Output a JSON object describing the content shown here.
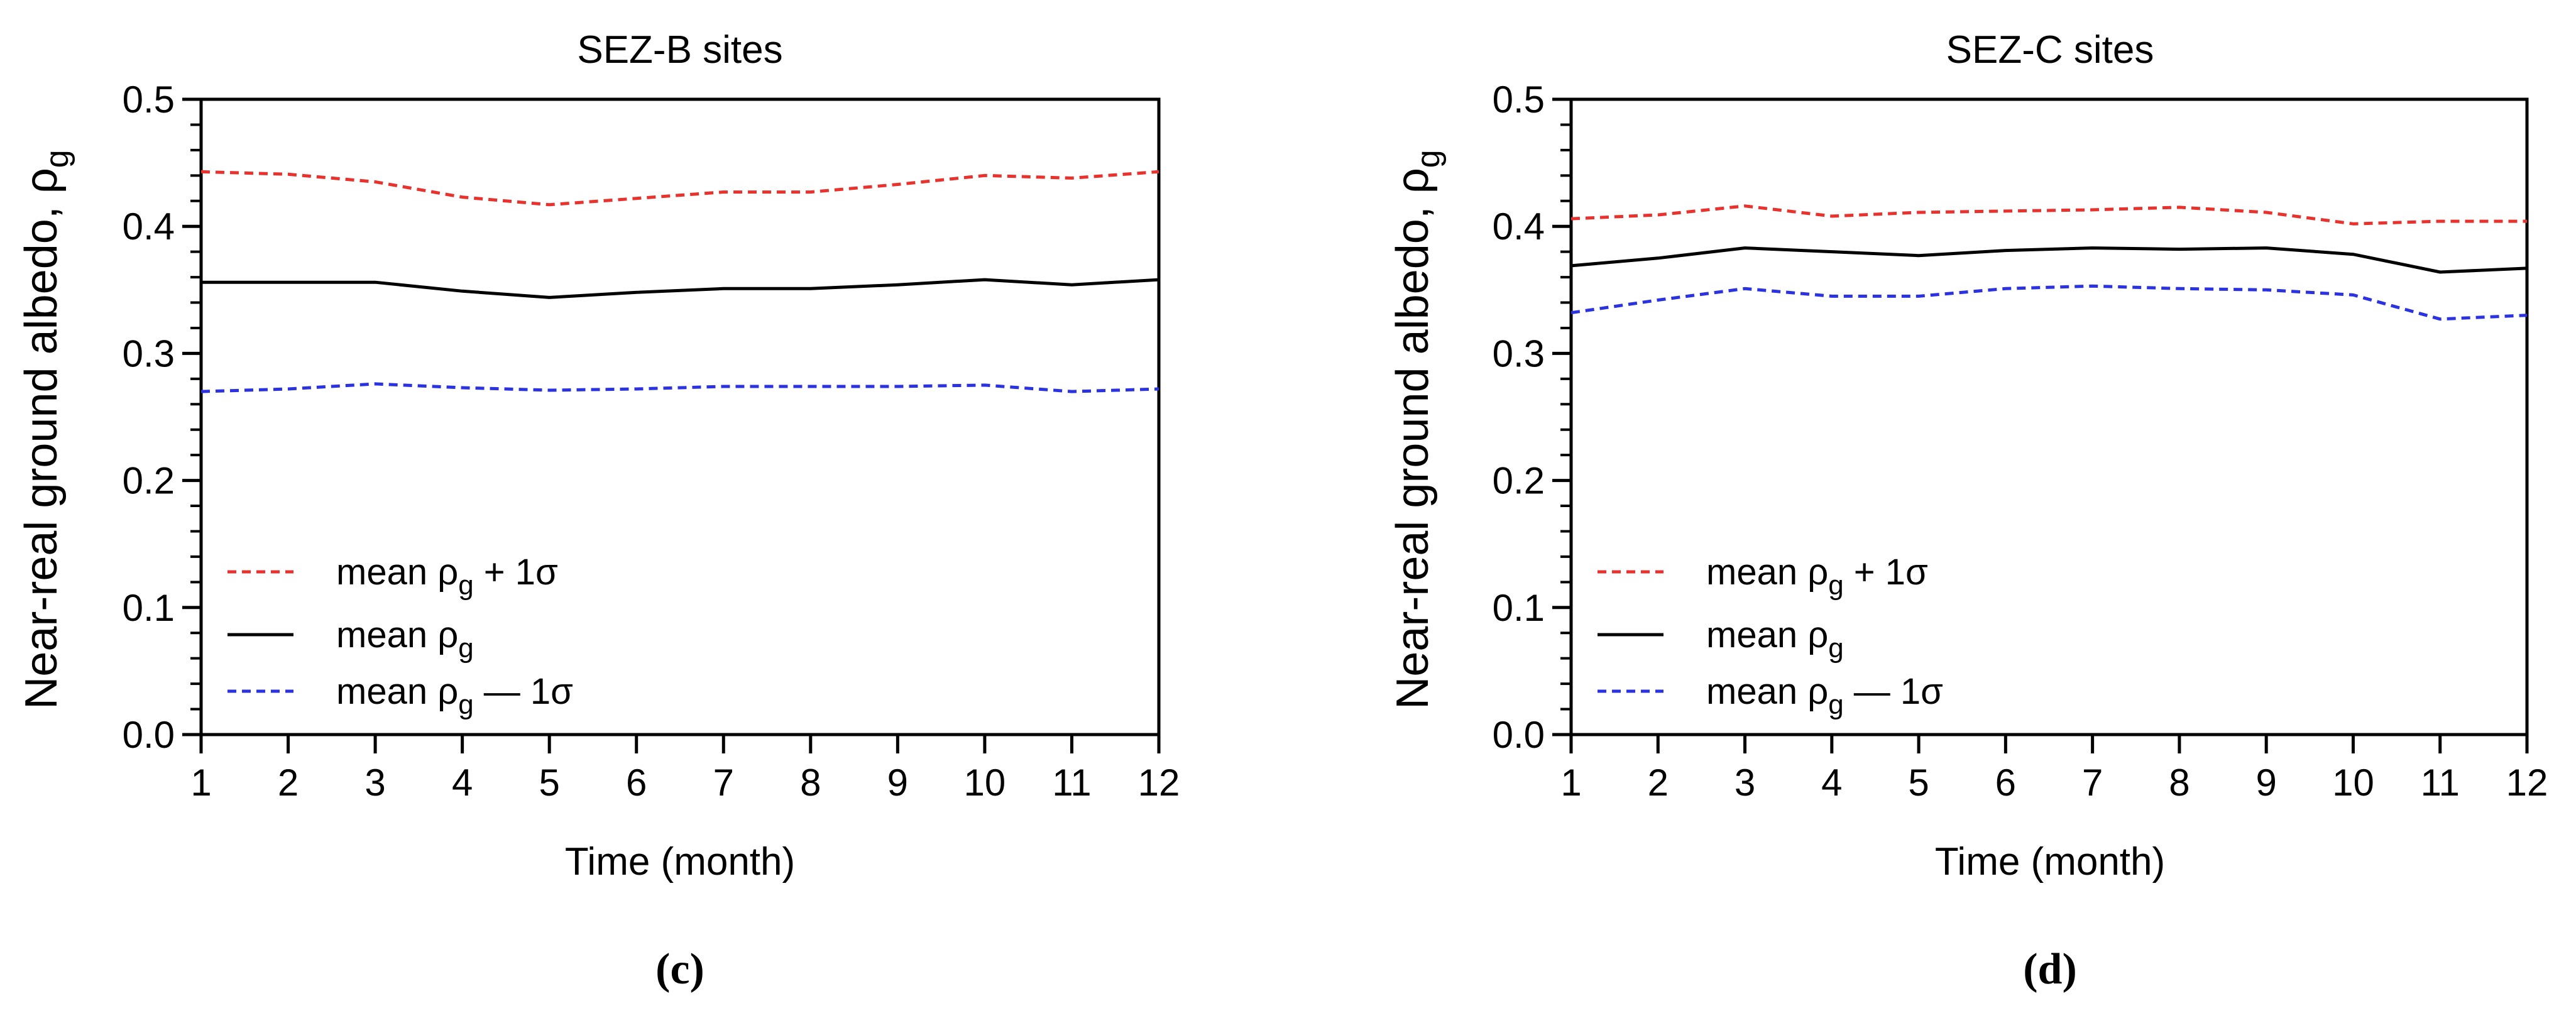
{
  "chart_data": [
    {
      "type": "line",
      "panel_label": "(c)",
      "title": "SEZ-B sites",
      "xlabel": "Time (month)",
      "ylabel": "Near-real ground albedo, ρ",
      "ylabel_sub": "g",
      "xlim": [
        1,
        12
      ],
      "ylim": [
        0,
        0.5
      ],
      "x": [
        1,
        2,
        3,
        4,
        5,
        6,
        7,
        8,
        9,
        10,
        11,
        12
      ],
      "x_ticks": [
        "1",
        "2",
        "3",
        "4",
        "5",
        "6",
        "7",
        "8",
        "9",
        "10",
        "11",
        "12"
      ],
      "y_ticks": [
        "0.0",
        "0.1",
        "0.2",
        "0.3",
        "0.4",
        "0.5"
      ],
      "legend_position": "lower-left",
      "series": [
        {
          "key": "plus",
          "name": "mean ρg + 1σ",
          "legend_pre": "mean ρ",
          "legend_sub": "g",
          "legend_post": " + 1σ",
          "color": "#e8322d",
          "style": "dashed",
          "values": [
            0.443,
            0.441,
            0.435,
            0.423,
            0.417,
            0.422,
            0.427,
            0.427,
            0.433,
            0.44,
            0.438,
            0.443
          ]
        },
        {
          "key": "mean",
          "name": "mean ρg",
          "legend_pre": "mean ρ",
          "legend_sub": "g",
          "legend_post": "",
          "color": "#000000",
          "style": "solid",
          "values": [
            0.356,
            0.356,
            0.356,
            0.349,
            0.344,
            0.348,
            0.351,
            0.351,
            0.354,
            0.358,
            0.354,
            0.358
          ]
        },
        {
          "key": "minus",
          "name": "mean ρg — 1σ",
          "legend_pre": "mean ρ",
          "legend_sub": "g",
          "legend_post": " — 1σ",
          "color": "#2b32e0",
          "style": "dashed",
          "values": [
            0.27,
            0.272,
            0.276,
            0.273,
            0.271,
            0.272,
            0.274,
            0.274,
            0.274,
            0.275,
            0.27,
            0.272
          ]
        }
      ]
    },
    {
      "type": "line",
      "panel_label": "(d)",
      "title": "SEZ-C sites",
      "xlabel": "Time (month)",
      "ylabel": "Near-real ground albedo, ρ",
      "ylabel_sub": "g",
      "xlim": [
        1,
        12
      ],
      "ylim": [
        0,
        0.5
      ],
      "x": [
        1,
        2,
        3,
        4,
        5,
        6,
        7,
        8,
        9,
        10,
        11,
        12
      ],
      "x_ticks": [
        "1",
        "2",
        "3",
        "4",
        "5",
        "6",
        "7",
        "8",
        "9",
        "10",
        "11",
        "12"
      ],
      "y_ticks": [
        "0.0",
        "0.1",
        "0.2",
        "0.3",
        "0.4",
        "0.5"
      ],
      "legend_position": "lower-left",
      "series": [
        {
          "key": "plus",
          "name": "mean ρg + 1σ",
          "legend_pre": "mean ρ",
          "legend_sub": "g",
          "legend_post": " + 1σ",
          "color": "#e8322d",
          "style": "dashed",
          "values": [
            0.406,
            0.409,
            0.416,
            0.408,
            0.411,
            0.412,
            0.413,
            0.415,
            0.411,
            0.402,
            0.404,
            0.404
          ]
        },
        {
          "key": "mean",
          "name": "mean ρg",
          "legend_pre": "mean ρ",
          "legend_sub": "g",
          "legend_post": "",
          "color": "#000000",
          "style": "solid",
          "values": [
            0.369,
            0.375,
            0.383,
            0.38,
            0.377,
            0.381,
            0.383,
            0.382,
            0.383,
            0.378,
            0.364,
            0.367
          ]
        },
        {
          "key": "minus",
          "name": "mean ρg — 1σ",
          "legend_pre": "mean ρ",
          "legend_sub": "g",
          "legend_post": " — 1σ",
          "color": "#2b32e0",
          "style": "dashed",
          "values": [
            0.332,
            0.342,
            0.351,
            0.345,
            0.345,
            0.351,
            0.353,
            0.351,
            0.35,
            0.346,
            0.327,
            0.33
          ]
        }
      ]
    }
  ]
}
